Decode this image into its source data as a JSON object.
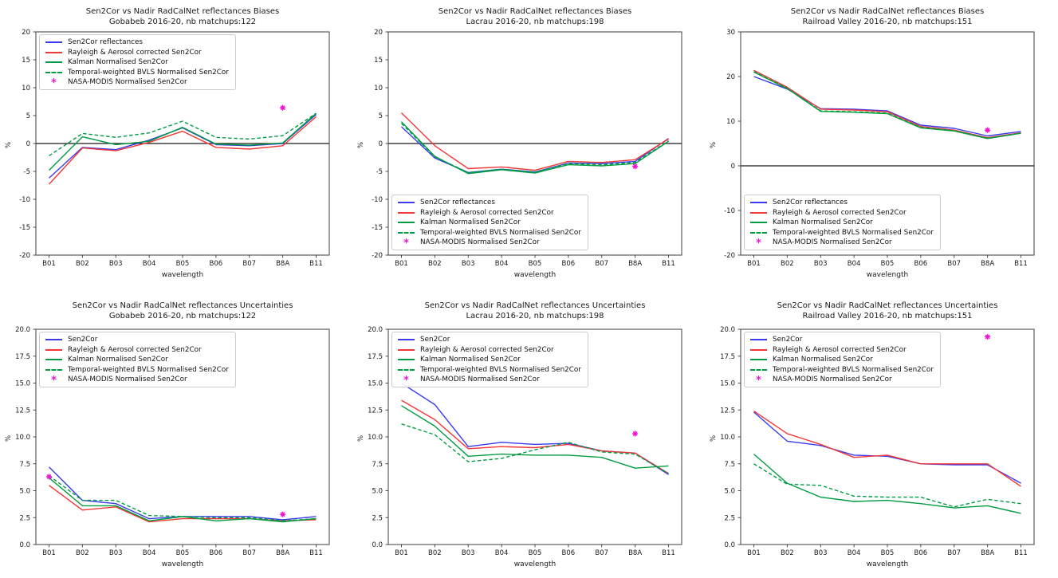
{
  "page": {
    "background": "#ffffff"
  },
  "colors": {
    "blue": "#3a3aee",
    "red": "#f33636",
    "green": "#009c41",
    "magenta": "#ee14d6",
    "frame": "#3c3c3c",
    "zero_line": "#1a1a1a",
    "text": "#1a1a1a"
  },
  "chart_data": [
    {
      "type": "line",
      "title": "Sen2Cor vs Nadir RadCalNet reflectances Biases",
      "subtitle": "Gobabeb 2016-20, nb matchups:122",
      "xlabel": "wavelength",
      "ylabel": "%",
      "ylim": [
        -20,
        20
      ],
      "yticks": [
        20,
        15,
        10,
        5,
        0,
        -5,
        -10,
        -15,
        -20
      ],
      "ytick_decimals": 0,
      "zero_line": true,
      "grid": false,
      "legend_position": "top-left",
      "categories": [
        "B01",
        "B02",
        "B03",
        "B04",
        "B05",
        "B06",
        "B07",
        "B8A",
        "B11"
      ],
      "series": [
        {
          "name": "Sen2Cor reflectances",
          "color": "blue",
          "style": "solid",
          "values": [
            -6.2,
            -0.7,
            -1.1,
            0.6,
            2.8,
            -0.2,
            -0.4,
            0.0,
            5.2
          ]
        },
        {
          "name": "Rayleigh & Aerosol corrected Sen2Cor",
          "color": "red",
          "style": "solid",
          "values": [
            -7.3,
            -0.8,
            -1.3,
            0.2,
            2.2,
            -0.7,
            -1.0,
            -0.4,
            4.8
          ]
        },
        {
          "name": "Kalman Normalised Sen2Cor",
          "color": "green",
          "style": "solid",
          "values": [
            -4.8,
            1.2,
            -0.2,
            0.4,
            2.9,
            -0.1,
            -0.3,
            0.1,
            5.4
          ]
        },
        {
          "name": "Temporal-weighted BVLS Normalised Sen2Cor",
          "color": "green",
          "style": "dashed",
          "values": [
            -2.2,
            1.8,
            1.1,
            1.9,
            4.0,
            1.1,
            0.8,
            1.4,
            5.4
          ]
        },
        {
          "name": "NASA-MODIS Normalised Sen2Cor",
          "color": "magenta",
          "style": "marker",
          "points": [
            {
              "x": "B8A",
              "y": 6.4
            }
          ]
        }
      ]
    },
    {
      "type": "line",
      "title": "Sen2Cor vs Nadir RadCalNet reflectances Biases",
      "subtitle": "Lacrau 2016-20, nb matchups:198",
      "xlabel": "wavelength",
      "ylabel": "%",
      "ylim": [
        -20,
        20
      ],
      "yticks": [
        20,
        15,
        10,
        5,
        0,
        -5,
        -10,
        -15,
        -20
      ],
      "ytick_decimals": 0,
      "zero_line": true,
      "grid": false,
      "legend_position": "bottom-left",
      "categories": [
        "B01",
        "B02",
        "B03",
        "B04",
        "B05",
        "B06",
        "B07",
        "B8A",
        "B11"
      ],
      "series": [
        {
          "name": "Sen2Cor reflectances",
          "color": "blue",
          "style": "solid",
          "values": [
            3.0,
            -2.6,
            -5.2,
            -4.6,
            -5.1,
            -3.5,
            -3.6,
            -3.2,
            0.9
          ]
        },
        {
          "name": "Rayleigh & Aerosol corrected Sen2Cor",
          "color": "red",
          "style": "solid",
          "values": [
            5.5,
            -0.4,
            -4.5,
            -4.2,
            -4.8,
            -3.2,
            -3.4,
            -2.9,
            0.8
          ]
        },
        {
          "name": "Kalman Normalised Sen2Cor",
          "color": "green",
          "style": "solid",
          "values": [
            3.9,
            -2.3,
            -5.4,
            -4.7,
            -5.3,
            -3.8,
            -4.0,
            -3.6,
            0.4
          ]
        },
        {
          "name": "Temporal-weighted BVLS Normalised Sen2Cor",
          "color": "green",
          "style": "dashed",
          "values": [
            3.6,
            -2.4,
            -5.2,
            -4.6,
            -5.1,
            -3.6,
            -3.8,
            -3.4,
            0.5
          ]
        },
        {
          "name": "NASA-MODIS Normalised Sen2Cor",
          "color": "magenta",
          "style": "marker",
          "points": [
            {
              "x": "B8A",
              "y": -4.1
            }
          ]
        }
      ]
    },
    {
      "type": "line",
      "title": "Sen2Cor vs Nadir RadCalNet reflectances Biases",
      "subtitle": "Railroad Valley 2016-20, nb matchups:151",
      "xlabel": "wavelength",
      "ylabel": "%",
      "ylim": [
        -20,
        30
      ],
      "yticks": [
        30,
        20,
        10,
        0,
        -10,
        -20
      ],
      "ytick_decimals": 0,
      "zero_line": true,
      "grid": false,
      "legend_position": "bottom-left",
      "categories": [
        "B01",
        "B02",
        "B03",
        "B04",
        "B05",
        "B06",
        "B07",
        "B8A",
        "B11"
      ],
      "series": [
        {
          "name": "Sen2Cor reflectances",
          "color": "blue",
          "style": "solid",
          "values": [
            20.0,
            17.2,
            12.8,
            12.7,
            12.3,
            9.1,
            8.4,
            6.7,
            7.7
          ]
        },
        {
          "name": "Rayleigh & Aerosol corrected Sen2Cor",
          "color": "red",
          "style": "solid",
          "values": [
            21.4,
            17.6,
            12.7,
            12.5,
            12.1,
            8.8,
            8.0,
            6.3,
            7.4
          ]
        },
        {
          "name": "Kalman Normalised Sen2Cor",
          "color": "green",
          "style": "solid",
          "values": [
            21.0,
            17.3,
            12.2,
            12.0,
            11.7,
            8.5,
            7.8,
            6.1,
            7.3
          ]
        },
        {
          "name": "Temporal-weighted BVLS Normalised Sen2Cor",
          "color": "green",
          "style": "dashed",
          "values": [
            21.1,
            17.4,
            12.3,
            12.1,
            11.8,
            8.6,
            7.9,
            6.2,
            7.3
          ]
        },
        {
          "name": "NASA-MODIS Normalised Sen2Cor",
          "color": "magenta",
          "style": "marker",
          "points": [
            {
              "x": "B8A",
              "y": 8.0
            }
          ]
        }
      ]
    },
    {
      "type": "line",
      "title": "Sen2Cor vs Nadir RadCalNet reflectances Uncertainties",
      "subtitle": "Gobabeb 2016-20, nb matchups:122",
      "xlabel": "wavelength",
      "ylabel": "%",
      "ylim": [
        0,
        20
      ],
      "yticks": [
        20.0,
        17.5,
        15.0,
        12.5,
        10.0,
        7.5,
        5.0,
        2.5,
        0.0
      ],
      "ytick_decimals": 1,
      "zero_line": false,
      "grid": false,
      "legend_position": "top-left",
      "categories": [
        "B01",
        "B02",
        "B03",
        "B04",
        "B05",
        "B06",
        "B07",
        "B8A",
        "B11"
      ],
      "series": [
        {
          "name": "Sen2Cor",
          "color": "blue",
          "style": "solid",
          "values": [
            7.2,
            4.1,
            3.8,
            2.4,
            2.6,
            2.6,
            2.6,
            2.3,
            2.6
          ]
        },
        {
          "name": "Rayleigh & Aerosol corrected Sen2Cor",
          "color": "red",
          "style": "solid",
          "values": [
            5.5,
            3.2,
            3.5,
            2.1,
            2.4,
            2.4,
            2.4,
            2.2,
            2.3
          ]
        },
        {
          "name": "Kalman Normalised Sen2Cor",
          "color": "green",
          "style": "solid",
          "values": [
            6.2,
            3.6,
            3.6,
            2.2,
            2.6,
            2.2,
            2.4,
            2.1,
            2.4
          ]
        },
        {
          "name": "Temporal-weighted BVLS Normalised Sen2Cor",
          "color": "green",
          "style": "dashed",
          "values": [
            6.4,
            4.1,
            4.1,
            2.7,
            2.6,
            2.5,
            2.5,
            2.2,
            2.4
          ]
        },
        {
          "name": "NASA-MODIS Normalised Sen2Cor",
          "color": "magenta",
          "style": "marker",
          "points": [
            {
              "x": "B01",
              "y": 6.3
            },
            {
              "x": "B8A",
              "y": 2.8
            }
          ]
        }
      ]
    },
    {
      "type": "line",
      "title": "Sen2Cor vs Nadir RadCalNet reflectances Uncertainties",
      "subtitle": "Lacrau 2016-20, nb matchups:198",
      "xlabel": "wavelength",
      "ylabel": "%",
      "ylim": [
        0,
        20
      ],
      "yticks": [
        20.0,
        17.5,
        15.0,
        12.5,
        10.0,
        7.5,
        5.0,
        2.5,
        0.0
      ],
      "ytick_decimals": 1,
      "zero_line": false,
      "grid": false,
      "legend_position": "top-left",
      "categories": [
        "B01",
        "B02",
        "B03",
        "B04",
        "B05",
        "B06",
        "B07",
        "B8A",
        "B11"
      ],
      "series": [
        {
          "name": "Sen2Cor",
          "color": "blue",
          "style": "solid",
          "values": [
            15.0,
            13.0,
            9.1,
            9.5,
            9.3,
            9.4,
            8.7,
            8.5,
            6.5
          ]
        },
        {
          "name": "Rayleigh & Aerosol corrected Sen2Cor",
          "color": "red",
          "style": "solid",
          "values": [
            13.4,
            11.6,
            8.9,
            9.1,
            9.0,
            9.3,
            8.7,
            8.5,
            6.6
          ]
        },
        {
          "name": "Kalman Normalised Sen2Cor",
          "color": "green",
          "style": "solid",
          "values": [
            12.9,
            11.0,
            8.2,
            8.4,
            8.3,
            8.3,
            8.1,
            7.1,
            7.3
          ]
        },
        {
          "name": "Temporal-weighted BVLS Normalised Sen2Cor",
          "color": "green",
          "style": "dashed",
          "values": [
            11.2,
            10.2,
            7.7,
            8.0,
            8.8,
            9.5,
            8.6,
            8.4,
            6.6
          ]
        },
        {
          "name": "NASA-MODIS Normalised Sen2Cor",
          "color": "magenta",
          "style": "marker",
          "points": [
            {
              "x": "B8A",
              "y": 10.3
            }
          ]
        }
      ]
    },
    {
      "type": "line",
      "title": "Sen2Cor vs Nadir RadCalNet reflectances Uncertainties",
      "subtitle": "Railroad Valley 2016-20, nb matchups:151",
      "xlabel": "wavelength",
      "ylabel": "%",
      "ylim": [
        0,
        20
      ],
      "yticks": [
        20.0,
        17.5,
        15.0,
        12.5,
        10.0,
        7.5,
        5.0,
        2.5,
        0.0
      ],
      "ytick_decimals": 1,
      "zero_line": false,
      "grid": false,
      "legend_position": "top-left",
      "categories": [
        "B01",
        "B02",
        "B03",
        "B04",
        "B05",
        "B06",
        "B07",
        "B8A",
        "B11"
      ],
      "series": [
        {
          "name": "Sen2Cor",
          "color": "blue",
          "style": "solid",
          "values": [
            12.3,
            9.6,
            9.2,
            8.3,
            8.2,
            7.5,
            7.4,
            7.4,
            5.7
          ]
        },
        {
          "name": "Rayleigh & Aerosol corrected Sen2Cor",
          "color": "red",
          "style": "solid",
          "values": [
            12.4,
            10.3,
            9.3,
            8.1,
            8.3,
            7.5,
            7.5,
            7.5,
            5.4
          ]
        },
        {
          "name": "Kalman Normalised Sen2Cor",
          "color": "green",
          "style": "solid",
          "values": [
            8.4,
            5.7,
            4.4,
            4.0,
            4.1,
            3.8,
            3.4,
            3.6,
            2.9
          ]
        },
        {
          "name": "Temporal-weighted BVLS Normalised Sen2Cor",
          "color": "green",
          "style": "dashed",
          "values": [
            7.5,
            5.6,
            5.5,
            4.5,
            4.4,
            4.4,
            3.5,
            4.2,
            3.8
          ]
        },
        {
          "name": "NASA-MODIS Normalised Sen2Cor",
          "color": "magenta",
          "style": "marker",
          "points": [
            {
              "x": "B8A",
              "y": 19.3
            }
          ]
        }
      ]
    }
  ]
}
